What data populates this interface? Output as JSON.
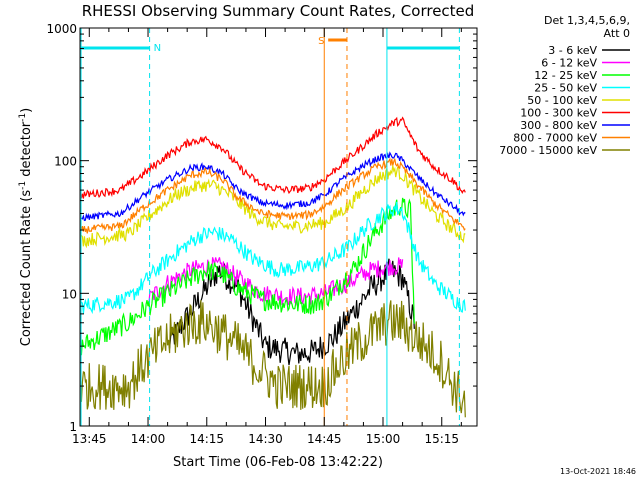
{
  "chart_data": {
    "type": "line",
    "title": "RHESSI Observing Summary Count Rates, Corrected",
    "xlabel": "Start Time (06-Feb-08 13:42:22)",
    "ylabel_main": "Corrected Count Rate (s",
    "ylabel_sup1": "-1",
    "ylabel_mid": " detector",
    "ylabel_sup2": "-1",
    "ylabel_end": ")",
    "y_scale": "log",
    "ylim": [
      1,
      1000
    ],
    "y_ticks": [
      {
        "value": 1,
        "label": "1"
      },
      {
        "value": 10,
        "label": "10"
      },
      {
        "value": 100,
        "label": "100"
      },
      {
        "value": 1000,
        "label": "1000"
      }
    ],
    "x_range_minutes": [
      -2.37,
      99.0
    ],
    "x_ticks": [
      {
        "min": 0,
        "label": "13:45"
      },
      {
        "min": 15,
        "label": "14:00"
      },
      {
        "min": 30,
        "label": "14:15"
      },
      {
        "min": 45,
        "label": "14:30"
      },
      {
        "min": 60,
        "label": "14:45"
      },
      {
        "min": 75,
        "label": "15:00"
      },
      {
        "min": 90,
        "label": "15:15"
      }
    ],
    "legend_header": [
      "Det 1,3,4,5,6,9,",
      "Att 0"
    ],
    "legend_position": "right",
    "footer": "13-Oct-2021 18:46",
    "markers": {
      "night_label": "N",
      "saa_label": "S",
      "night_color": "#00e5ee",
      "saa_color": "#ff8000"
    },
    "series": [
      {
        "name": "3 - 6 keV",
        "color": "#000000",
        "x": [
          -2,
          10,
          20,
          29,
          33,
          38,
          45,
          53,
          57,
          62,
          67,
          72,
          77,
          80,
          83,
          86
        ],
        "y": [
          null,
          null,
          4,
          10,
          15,
          11,
          4,
          3.5,
          3.6,
          4.5,
          7,
          11,
          15,
          13,
          6,
          null
        ]
      },
      {
        "name": "6 - 12 keV",
        "color": "#ff00ff",
        "x": [
          -2,
          10,
          15,
          20,
          26,
          30,
          34,
          38,
          44,
          50,
          56,
          60,
          66,
          72,
          77,
          80,
          86
        ],
        "y": [
          null,
          null,
          9,
          12,
          15,
          16,
          16,
          13,
          10,
          9.5,
          9.5,
          10,
          12,
          15,
          16,
          16,
          null
        ]
      },
      {
        "name": "12 - 25 keV",
        "color": "#00ff00",
        "x": [
          -2,
          10,
          15,
          20,
          26,
          30,
          34,
          38,
          44,
          52,
          58,
          62,
          68,
          72,
          76,
          79,
          82,
          83
        ],
        "y": [
          4,
          6,
          8,
          10,
          13,
          15,
          14,
          11,
          9,
          8.3,
          8.3,
          10,
          16,
          26,
          38,
          46,
          42,
          6
        ]
      },
      {
        "name": "25 - 50 keV",
        "color": "#00ffff",
        "x": [
          -2,
          10,
          16,
          22,
          28,
          32,
          36,
          42,
          48,
          54,
          60,
          66,
          70,
          74,
          78,
          80,
          84,
          88,
          93,
          96
        ],
        "y": [
          8,
          9,
          14,
          20,
          27,
          29,
          26,
          18,
          15,
          15.5,
          17,
          22,
          30,
          38,
          44,
          42,
          18,
          12,
          9,
          8
        ]
      },
      {
        "name": "50 - 100 keV",
        "color": "#e0e000",
        "x": [
          -2,
          10,
          16,
          22,
          28,
          32,
          36,
          42,
          48,
          54,
          60,
          66,
          70,
          74,
          78,
          80,
          84,
          88,
          93,
          96
        ],
        "y": [
          25,
          28,
          40,
          55,
          65,
          65,
          55,
          38,
          32,
          32,
          34,
          45,
          60,
          75,
          85,
          78,
          55,
          40,
          30,
          26
        ]
      },
      {
        "name": "100 - 300 keV",
        "color": "#ff0000",
        "x": [
          -2,
          8,
          14,
          20,
          26,
          30,
          34,
          38,
          44,
          50,
          56,
          60,
          64,
          70,
          74,
          78,
          80,
          84,
          88,
          93,
          96
        ],
        "y": [
          55,
          60,
          80,
          110,
          140,
          145,
          125,
          90,
          65,
          60,
          62,
          72,
          92,
          130,
          165,
          195,
          200,
          120,
          90,
          70,
          55
        ]
      },
      {
        "name": "300 - 800 keV",
        "color": "#0000ff",
        "x": [
          -2,
          8,
          14,
          20,
          26,
          30,
          34,
          38,
          44,
          50,
          56,
          60,
          64,
          70,
          74,
          78,
          80,
          84,
          88,
          93,
          96
        ],
        "y": [
          37,
          40,
          55,
          72,
          88,
          90,
          80,
          60,
          48,
          46,
          48,
          55,
          70,
          92,
          105,
          110,
          100,
          75,
          58,
          45,
          38
        ]
      },
      {
        "name": "800 - 7000 keV",
        "color": "#ff8000",
        "x": [
          -2,
          8,
          14,
          20,
          26,
          30,
          34,
          38,
          44,
          50,
          56,
          60,
          64,
          70,
          74,
          78,
          80,
          84,
          88,
          93,
          96
        ],
        "y": [
          30,
          32,
          45,
          60,
          78,
          82,
          72,
          52,
          40,
          38,
          39,
          45,
          58,
          78,
          92,
          98,
          88,
          65,
          48,
          36,
          31
        ]
      },
      {
        "name": "7000 - 15000 keV",
        "color": "#808000",
        "x": [
          -2,
          10,
          14,
          18,
          22,
          26,
          30,
          34,
          38,
          42,
          48,
          54,
          60,
          64,
          68,
          72,
          76,
          80,
          82,
          86,
          90,
          93,
          96
        ],
        "y": [
          2,
          2,
          3,
          4,
          5,
          6,
          6,
          5,
          4,
          3,
          2,
          2,
          2,
          3,
          4,
          5,
          6,
          6,
          5,
          4,
          3,
          2,
          1.5
        ]
      }
    ],
    "vertical_lines": [
      {
        "min": -2.1,
        "color": "#00e5ee",
        "dash": "solid"
      },
      {
        "min": 15.4,
        "color": "#00e5ee",
        "dash": "dashed"
      },
      {
        "min": 60.0,
        "color": "#ff8000",
        "dash": "solid"
      },
      {
        "min": 65.8,
        "color": "#ff8000",
        "dash": "dashed"
      },
      {
        "min": 76.0,
        "color": "#00e5ee",
        "dash": "solid"
      },
      {
        "min": 94.5,
        "color": "#00e5ee",
        "dash": "dashed"
      }
    ],
    "night_bars": [
      {
        "start_min": -2.1,
        "end_min": 15.4
      },
      {
        "start_min": 76.0,
        "end_min": 94.5
      }
    ],
    "saa_bars": [
      {
        "start_min": 61.0,
        "end_min": 65.8
      }
    ]
  }
}
